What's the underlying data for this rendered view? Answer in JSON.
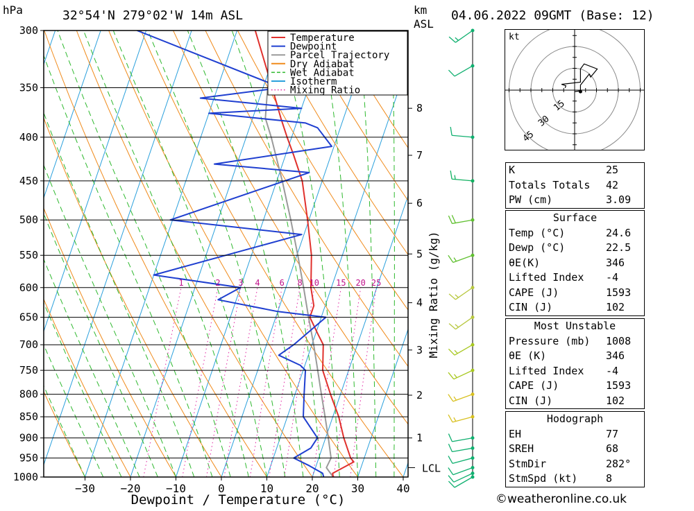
{
  "header": {
    "unit_pressure": "hPa",
    "location": "32°54'N 279°02'W 14m ASL",
    "km_label": "km",
    "asl_label": "ASL",
    "datetime": "04.06.2022 09GMT (Base: 12)"
  },
  "chart_data": {
    "type": "line",
    "xlabel": "Dewpoint / Temperature (°C)",
    "ylabel": "",
    "x_ticks": [
      -30,
      -20,
      -10,
      0,
      10,
      20,
      30,
      40
    ],
    "x_range": [
      -40,
      40
    ],
    "y_range": [
      1000,
      300
    ],
    "p_ticks": [
      300,
      350,
      400,
      450,
      500,
      550,
      600,
      650,
      700,
      750,
      800,
      850,
      900,
      950,
      1000
    ],
    "km_ticks": [
      {
        "km": 1,
        "p": 900
      },
      {
        "km": 2,
        "p": 802
      },
      {
        "km": 3,
        "p": 710
      },
      {
        "km": 4,
        "p": 625
      },
      {
        "km": 5,
        "p": 548
      },
      {
        "km": 6,
        "p": 478
      },
      {
        "km": 7,
        "p": 420
      },
      {
        "km": 8,
        "p": 370
      }
    ],
    "lcl_label": "LCL",
    "lcl_p": 975,
    "mixing_ratio_title": "Mixing Ratio (g/kg)",
    "mixing_ratio_labels": [
      "1",
      "2",
      "3",
      "4",
      "6",
      "8",
      "10",
      "15",
      "20",
      "25"
    ],
    "grid": true,
    "legend_position": "top",
    "series": [
      {
        "name": "Temperature",
        "color": "#e0302c",
        "points": [
          [
            1000,
            24.6
          ],
          [
            990,
            24.2
          ],
          [
            960,
            28.0
          ],
          [
            950,
            27.0
          ],
          [
            900,
            24.0
          ],
          [
            850,
            21.3
          ],
          [
            800,
            17.8
          ],
          [
            750,
            14.3
          ],
          [
            700,
            12.5
          ],
          [
            680,
            10.5
          ],
          [
            650,
            7.5
          ],
          [
            630,
            7.5
          ],
          [
            600,
            5.5
          ],
          [
            550,
            3.2
          ],
          [
            500,
            -0.3
          ],
          [
            450,
            -4.4
          ],
          [
            420,
            -8.2
          ],
          [
            400,
            -11.0
          ],
          [
            380,
            -13.8
          ],
          [
            350,
            -18.0
          ],
          [
            300,
            -26.0
          ]
        ]
      },
      {
        "name": "Dewpoint",
        "color": "#1f3fd0",
        "points": [
          [
            1000,
            22.5
          ],
          [
            990,
            22.0
          ],
          [
            970,
            18.5
          ],
          [
            950,
            14.5
          ],
          [
            925,
            17.5
          ],
          [
            900,
            18.2
          ],
          [
            850,
            13.5
          ],
          [
            800,
            12.0
          ],
          [
            750,
            10.5
          ],
          [
            740,
            9.0
          ],
          [
            720,
            3.5
          ],
          [
            700,
            6.0
          ],
          [
            650,
            11.0
          ],
          [
            640,
            0.0
          ],
          [
            620,
            -14.0
          ],
          [
            600,
            -10.0
          ],
          [
            580,
            -30.0
          ],
          [
            520,
            -0.5
          ],
          [
            500,
            -30.5
          ],
          [
            440,
            -3.5
          ],
          [
            430,
            -25.0
          ],
          [
            410,
            -0.5
          ],
          [
            390,
            -5.0
          ],
          [
            385,
            -8.0
          ],
          [
            375,
            -30.0
          ],
          [
            370,
            -10.0
          ],
          [
            360,
            -33.0
          ],
          [
            350,
            -16.0
          ],
          [
            300,
            -52.0
          ]
        ]
      },
      {
        "name": "Parcel Trajectory",
        "color": "#9a9a9a",
        "points": [
          [
            1000,
            24.6
          ],
          [
            975,
            22.4
          ],
          [
            950,
            22.7
          ],
          [
            900,
            20.6
          ],
          [
            850,
            18.3
          ],
          [
            800,
            15.8
          ],
          [
            750,
            13.2
          ],
          [
            700,
            10.4
          ],
          [
            650,
            7.2
          ],
          [
            600,
            3.9
          ],
          [
            550,
            0.2
          ],
          [
            500,
            -4.0
          ],
          [
            450,
            -8.8
          ],
          [
            400,
            -14.5
          ],
          [
            380,
            -17.2
          ],
          [
            350,
            -19.0
          ]
        ]
      }
    ],
    "legend": [
      {
        "label": "Temperature",
        "color": "#e0302c",
        "style": "solid"
      },
      {
        "label": "Dewpoint",
        "color": "#1f3fd0",
        "style": "solid"
      },
      {
        "label": "Parcel Trajectory",
        "color": "#9a9a9a",
        "style": "solid"
      },
      {
        "label": "Dry Adiabat",
        "color": "#f08a1a",
        "style": "solid"
      },
      {
        "label": "Wet Adiabat",
        "color": "#2db82d",
        "style": "dashed"
      },
      {
        "label": "Isotherm",
        "color": "#2aa0dc",
        "style": "solid"
      },
      {
        "label": "Mixing Ratio",
        "color": "#e020a0",
        "style": "dotted"
      }
    ],
    "wind_barbs": [
      {
        "p": 1000,
        "dir": 240,
        "kt": 10
      },
      {
        "p": 990,
        "dir": 245,
        "kt": 10
      },
      {
        "p": 975,
        "dir": 250,
        "kt": 10
      },
      {
        "p": 950,
        "dir": 255,
        "kt": 10
      },
      {
        "p": 925,
        "dir": 260,
        "kt": 10
      },
      {
        "p": 900,
        "dir": 260,
        "kt": 10
      },
      {
        "p": 850,
        "dir": 255,
        "kt": 15
      },
      {
        "p": 800,
        "dir": 250,
        "kt": 15
      },
      {
        "p": 750,
        "dir": 245,
        "kt": 15
      },
      {
        "p": 700,
        "dir": 240,
        "kt": 15
      },
      {
        "p": 650,
        "dir": 235,
        "kt": 15
      },
      {
        "p": 600,
        "dir": 235,
        "kt": 15
      },
      {
        "p": 550,
        "dir": 250,
        "kt": 15
      },
      {
        "p": 500,
        "dir": 260,
        "kt": 20
      },
      {
        "p": 450,
        "dir": 275,
        "kt": 15
      },
      {
        "p": 400,
        "dir": 275,
        "kt": 10
      },
      {
        "p": 330,
        "dir": 240,
        "kt": 10
      },
      {
        "p": 300,
        "dir": 235,
        "kt": 15
      }
    ]
  },
  "hodograph": {
    "unit": "kt",
    "ring_labels": [
      "15",
      "30",
      "45"
    ],
    "points": [
      [
        -1.5,
        -6.5
      ],
      [
        -3.0,
        -6.0
      ],
      [
        -4.0,
        -9.0
      ],
      [
        -5.5,
        4.0
      ],
      [
        -14.5,
        4.0
      ],
      [
        -18.0,
        6.5
      ],
      [
        -14.5,
        15.5
      ],
      [
        -9.0,
        11.0
      ],
      [
        -11.0,
        10.0
      ],
      [
        -3.5,
        4.0
      ],
      [
        0.5,
        4.0
      ],
      [
        1.0,
        0.0
      ]
    ]
  },
  "indices": [
    {
      "label": "K",
      "value": "25"
    },
    {
      "label": "Totals Totals",
      "value": "42"
    },
    {
      "label": "PW (cm)",
      "value": "3.09"
    }
  ],
  "surface": {
    "title": "Surface",
    "rows": [
      {
        "label": "Temp (°C)",
        "value": "24.6"
      },
      {
        "label": "Dewp (°C)",
        "value": "22.5"
      },
      {
        "label": "θE(K)",
        "value": "346"
      },
      {
        "label": "Lifted Index",
        "value": "-4"
      },
      {
        "label": "CAPE (J)",
        "value": "1593"
      },
      {
        "label": "CIN (J)",
        "value": "102"
      }
    ]
  },
  "most_unstable": {
    "title": "Most Unstable",
    "rows": [
      {
        "label": "Pressure (mb)",
        "value": "1008"
      },
      {
        "label": "θE (K)",
        "value": "346"
      },
      {
        "label": "Lifted Index",
        "value": "-4"
      },
      {
        "label": "CAPE (J)",
        "value": "1593"
      },
      {
        "label": "CIN (J)",
        "value": "102"
      }
    ]
  },
  "hodograph_table": {
    "title": "Hodograph",
    "rows": [
      {
        "label": "EH",
        "value": "77"
      },
      {
        "label": "SREH",
        "value": "68"
      },
      {
        "label": "StmDir",
        "value": "282°"
      },
      {
        "label": "StmSpd (kt)",
        "value": "8"
      }
    ]
  },
  "footer": {
    "credit": "©weatheronline.co.uk"
  }
}
